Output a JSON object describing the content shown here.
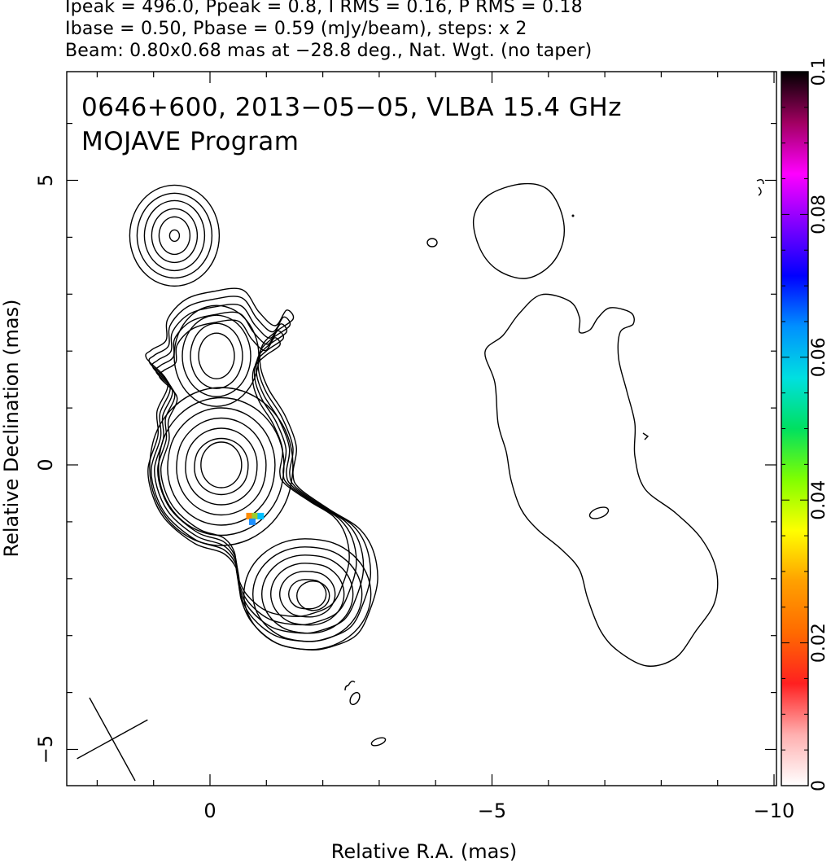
{
  "header": {
    "line1": "Ipeak = 496.0, Ppeak = 0.8, I RMS = 0.16, P RMS = 0.18",
    "line2": "Ibase = 0.50, Pbase = 0.59 (mJy/beam), steps: x 2",
    "line3": "Beam: 0.80x0.68 mas at −28.8 deg., Nat. Wgt. (no taper)"
  },
  "chart_data": [
    {
      "type": "contour",
      "title": "0646+600, 2013−05−05, VLBA 15.4 GHz",
      "subtitle": "MOJAVE Program",
      "xlabel": "Relative R.A. (mas)",
      "ylabel": "Relative Declination (mas)",
      "xlim": [
        2.5,
        -10.2
      ],
      "ylim": [
        -5.6,
        7.0
      ],
      "x_ticks": [
        {
          "v": 0,
          "label": "0"
        },
        {
          "v": -5,
          "label": "−5"
        },
        {
          "v": -10,
          "label": "−10"
        }
      ],
      "y_ticks": [
        {
          "v": 5,
          "label": "5"
        },
        {
          "v": 0,
          "label": "0"
        },
        {
          "v": -5,
          "label": "−5"
        }
      ],
      "beam": {
        "major": 0.8,
        "minor": 0.68,
        "pa_deg": -28.8
      },
      "components": [
        {
          "x": -0.2,
          "y": 0.0,
          "levels": 10
        },
        {
          "x": 0.0,
          "y": 2.0,
          "levels": 7
        },
        {
          "x": -1.8,
          "y": -2.3,
          "levels": 8
        },
        {
          "x": 0.6,
          "y": 4.0,
          "levels": 6
        }
      ],
      "polarization_pixels_mas": [
        {
          "x": -0.7,
          "y": -0.9,
          "color": "#ff8c00"
        },
        {
          "x": -0.8,
          "y": -0.9,
          "color": "#9acd32"
        },
        {
          "x": -0.9,
          "y": -0.9,
          "color": "#00c0ff"
        },
        {
          "x": -0.75,
          "y": -1.0,
          "color": "#1e90ff"
        }
      ]
    },
    {
      "type": "colorbar",
      "range": [
        0,
        0.1
      ],
      "ticks": [
        {
          "v": 0,
          "label": "0"
        },
        {
          "v": 0.02,
          "label": "0.02"
        },
        {
          "v": 0.04,
          "label": "0.04"
        },
        {
          "v": 0.06,
          "label": "0.06"
        },
        {
          "v": 0.08,
          "label": "0.08"
        },
        {
          "v": 0.1,
          "label": "0.1"
        }
      ],
      "colors": [
        "#ffffff",
        "#ffb0b0",
        "#ff2020",
        "#ff6a00",
        "#ffa000",
        "#ffff00",
        "#80ff00",
        "#00e060",
        "#00e0e0",
        "#0090ff",
        "#0000ff",
        "#8000ff",
        "#ff00ff",
        "#a00060",
        "#000000"
      ]
    }
  ]
}
